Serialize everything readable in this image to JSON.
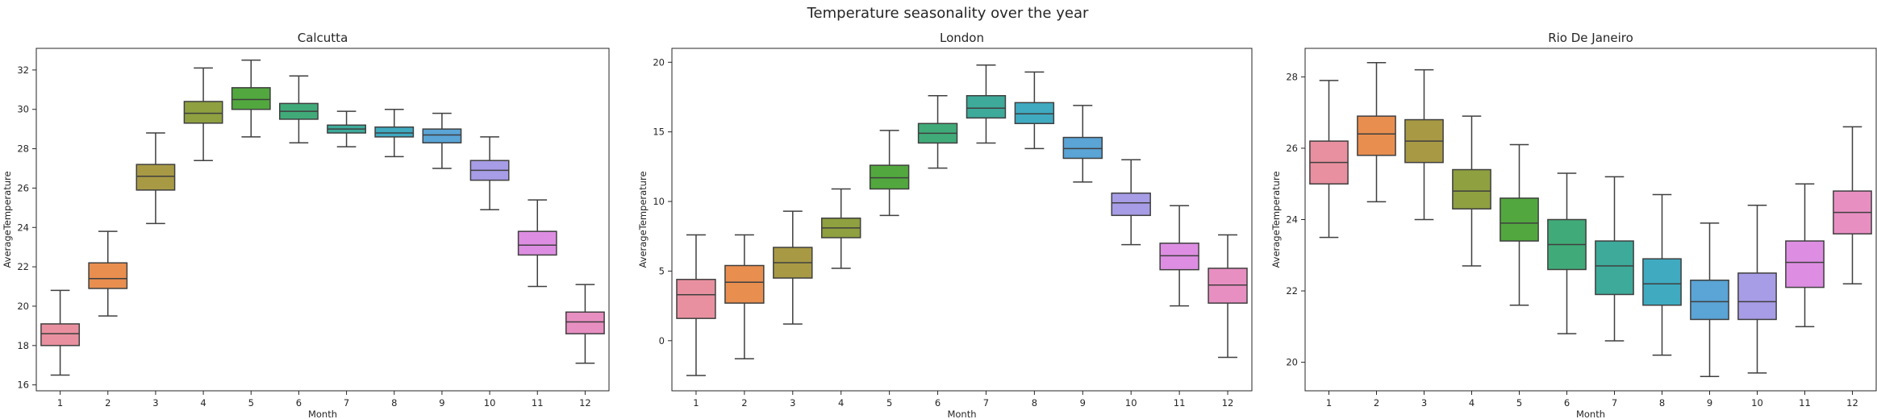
{
  "suptitle": "Temperature seasonality over the year",
  "palette": [
    "#e8909f",
    "#e88e4f",
    "#a89a45",
    "#8fa040",
    "#52a83e",
    "#40ab79",
    "#3daa9a",
    "#3faac0",
    "#5aa4d6",
    "#a79ce6",
    "#dd8ee2",
    "#e88fc2"
  ],
  "chart_data": [
    {
      "type": "box",
      "title": "Calcutta",
      "xlabel": "Month",
      "ylabel": "AverageTemperature",
      "categories": [
        "1",
        "2",
        "3",
        "4",
        "5",
        "6",
        "7",
        "8",
        "9",
        "10",
        "11",
        "12"
      ],
      "ylim": [
        15.7,
        33.1
      ],
      "yticks": [
        16,
        18,
        20,
        22,
        24,
        26,
        28,
        30,
        32
      ],
      "boxes": [
        {
          "whislo": 16.5,
          "q1": 18.0,
          "med": 18.6,
          "q3": 19.1,
          "whishi": 20.8
        },
        {
          "whislo": 19.5,
          "q1": 20.9,
          "med": 21.4,
          "q3": 22.2,
          "whishi": 23.8
        },
        {
          "whislo": 24.2,
          "q1": 25.9,
          "med": 26.6,
          "q3": 27.2,
          "whishi": 28.8
        },
        {
          "whislo": 27.4,
          "q1": 29.3,
          "med": 29.8,
          "q3": 30.4,
          "whishi": 32.1
        },
        {
          "whislo": 28.6,
          "q1": 30.0,
          "med": 30.5,
          "q3": 31.1,
          "whishi": 32.5
        },
        {
          "whislo": 28.3,
          "q1": 29.5,
          "med": 29.9,
          "q3": 30.3,
          "whishi": 31.7
        },
        {
          "whislo": 28.1,
          "q1": 28.8,
          "med": 29.0,
          "q3": 29.2,
          "whishi": 29.9
        },
        {
          "whislo": 27.6,
          "q1": 28.6,
          "med": 28.8,
          "q3": 29.1,
          "whishi": 30.0
        },
        {
          "whislo": 27.0,
          "q1": 28.3,
          "med": 28.7,
          "q3": 29.0,
          "whishi": 29.8
        },
        {
          "whislo": 24.9,
          "q1": 26.4,
          "med": 26.9,
          "q3": 27.4,
          "whishi": 28.6
        },
        {
          "whislo": 21.0,
          "q1": 22.6,
          "med": 23.1,
          "q3": 23.8,
          "whishi": 25.4
        },
        {
          "whislo": 17.1,
          "q1": 18.6,
          "med": 19.2,
          "q3": 19.7,
          "whishi": 21.1
        }
      ]
    },
    {
      "type": "box",
      "title": "London",
      "xlabel": "Month",
      "ylabel": "AverageTemperature",
      "categories": [
        "1",
        "2",
        "3",
        "4",
        "5",
        "6",
        "7",
        "8",
        "9",
        "10",
        "11",
        "12"
      ],
      "ylim": [
        -3.6,
        21.0
      ],
      "yticks": [
        0,
        5,
        10,
        15,
        20
      ],
      "boxes": [
        {
          "whislo": -2.5,
          "q1": 1.6,
          "med": 3.3,
          "q3": 4.4,
          "whishi": 7.6
        },
        {
          "whislo": -1.3,
          "q1": 2.7,
          "med": 4.2,
          "q3": 5.4,
          "whishi": 7.6
        },
        {
          "whislo": 1.2,
          "q1": 4.5,
          "med": 5.6,
          "q3": 6.7,
          "whishi": 9.3
        },
        {
          "whislo": 5.2,
          "q1": 7.4,
          "med": 8.1,
          "q3": 8.8,
          "whishi": 10.9
        },
        {
          "whislo": 9.0,
          "q1": 10.9,
          "med": 11.7,
          "q3": 12.6,
          "whishi": 15.1
        },
        {
          "whislo": 12.4,
          "q1": 14.2,
          "med": 14.9,
          "q3": 15.6,
          "whishi": 17.6
        },
        {
          "whislo": 14.2,
          "q1": 16.0,
          "med": 16.7,
          "q3": 17.6,
          "whishi": 19.8
        },
        {
          "whislo": 13.8,
          "q1": 15.6,
          "med": 16.3,
          "q3": 17.1,
          "whishi": 19.3
        },
        {
          "whislo": 11.4,
          "q1": 13.1,
          "med": 13.8,
          "q3": 14.6,
          "whishi": 16.9
        },
        {
          "whislo": 6.9,
          "q1": 9.0,
          "med": 9.9,
          "q3": 10.6,
          "whishi": 13.0
        },
        {
          "whislo": 2.5,
          "q1": 5.1,
          "med": 6.1,
          "q3": 7.0,
          "whishi": 9.7
        },
        {
          "whislo": -1.2,
          "q1": 2.7,
          "med": 4.0,
          "q3": 5.2,
          "whishi": 7.6
        }
      ]
    },
    {
      "type": "box",
      "title": "Rio De Janeiro",
      "xlabel": "Month",
      "ylabel": "AverageTemperature",
      "categories": [
        "1",
        "2",
        "3",
        "4",
        "5",
        "6",
        "7",
        "8",
        "9",
        "10",
        "11",
        "12"
      ],
      "ylim": [
        19.2,
        28.8
      ],
      "yticks": [
        20,
        22,
        24,
        26,
        28
      ],
      "boxes": [
        {
          "whislo": 23.5,
          "q1": 25.0,
          "med": 25.6,
          "q3": 26.2,
          "whishi": 27.9
        },
        {
          "whislo": 24.5,
          "q1": 25.8,
          "med": 26.4,
          "q3": 26.9,
          "whishi": 28.4
        },
        {
          "whislo": 24.0,
          "q1": 25.6,
          "med": 26.2,
          "q3": 26.8,
          "whishi": 28.2
        },
        {
          "whislo": 22.7,
          "q1": 24.3,
          "med": 24.8,
          "q3": 25.4,
          "whishi": 26.9
        },
        {
          "whislo": 21.6,
          "q1": 23.4,
          "med": 23.9,
          "q3": 24.6,
          "whishi": 26.1
        },
        {
          "whislo": 20.8,
          "q1": 22.6,
          "med": 23.3,
          "q3": 24.0,
          "whishi": 25.3
        },
        {
          "whislo": 20.6,
          "q1": 21.9,
          "med": 22.7,
          "q3": 23.4,
          "whishi": 25.2
        },
        {
          "whislo": 20.2,
          "q1": 21.6,
          "med": 22.2,
          "q3": 22.9,
          "whishi": 24.7
        },
        {
          "whislo": 19.6,
          "q1": 21.2,
          "med": 21.7,
          "q3": 22.3,
          "whishi": 23.9
        },
        {
          "whislo": 19.7,
          "q1": 21.2,
          "med": 21.7,
          "q3": 22.5,
          "whishi": 24.4
        },
        {
          "whislo": 21.0,
          "q1": 22.1,
          "med": 22.8,
          "q3": 23.4,
          "whishi": 25.0
        },
        {
          "whislo": 22.2,
          "q1": 23.6,
          "med": 24.2,
          "q3": 24.8,
          "whishi": 26.6
        }
      ]
    }
  ]
}
